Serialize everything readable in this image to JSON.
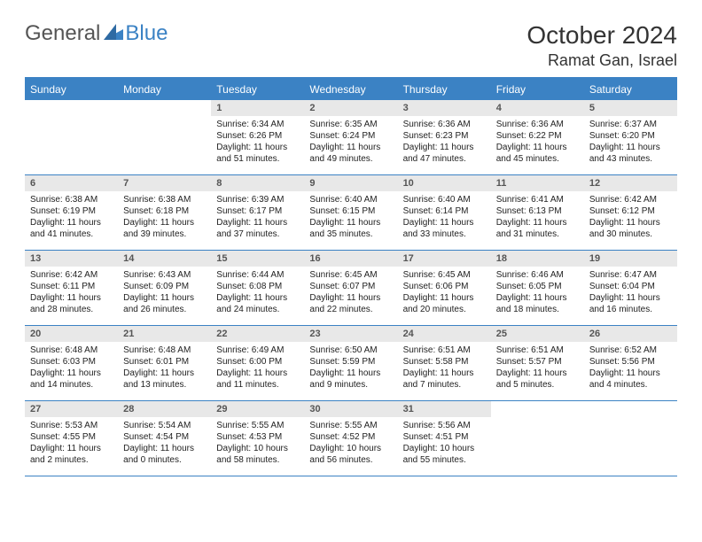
{
  "brand": {
    "part1": "General",
    "part2": "Blue"
  },
  "title": "October 2024",
  "location": "Ramat Gan, Israel",
  "colors": {
    "accent": "#3b82c4",
    "daynum_bg": "#e8e8e8",
    "text": "#333333",
    "background": "#ffffff"
  },
  "fonts": {
    "title_size": 28,
    "location_size": 18,
    "dow_size": 12,
    "daynum_size": 11,
    "body_size": 10
  },
  "days_of_week": [
    "Sunday",
    "Monday",
    "Tuesday",
    "Wednesday",
    "Thursday",
    "Friday",
    "Saturday"
  ],
  "weeks": [
    [
      null,
      null,
      {
        "num": "1",
        "sunrise": "Sunrise: 6:34 AM",
        "sunset": "Sunset: 6:26 PM",
        "daylight": "Daylight: 11 hours and 51 minutes."
      },
      {
        "num": "2",
        "sunrise": "Sunrise: 6:35 AM",
        "sunset": "Sunset: 6:24 PM",
        "daylight": "Daylight: 11 hours and 49 minutes."
      },
      {
        "num": "3",
        "sunrise": "Sunrise: 6:36 AM",
        "sunset": "Sunset: 6:23 PM",
        "daylight": "Daylight: 11 hours and 47 minutes."
      },
      {
        "num": "4",
        "sunrise": "Sunrise: 6:36 AM",
        "sunset": "Sunset: 6:22 PM",
        "daylight": "Daylight: 11 hours and 45 minutes."
      },
      {
        "num": "5",
        "sunrise": "Sunrise: 6:37 AM",
        "sunset": "Sunset: 6:20 PM",
        "daylight": "Daylight: 11 hours and 43 minutes."
      }
    ],
    [
      {
        "num": "6",
        "sunrise": "Sunrise: 6:38 AM",
        "sunset": "Sunset: 6:19 PM",
        "daylight": "Daylight: 11 hours and 41 minutes."
      },
      {
        "num": "7",
        "sunrise": "Sunrise: 6:38 AM",
        "sunset": "Sunset: 6:18 PM",
        "daylight": "Daylight: 11 hours and 39 minutes."
      },
      {
        "num": "8",
        "sunrise": "Sunrise: 6:39 AM",
        "sunset": "Sunset: 6:17 PM",
        "daylight": "Daylight: 11 hours and 37 minutes."
      },
      {
        "num": "9",
        "sunrise": "Sunrise: 6:40 AM",
        "sunset": "Sunset: 6:15 PM",
        "daylight": "Daylight: 11 hours and 35 minutes."
      },
      {
        "num": "10",
        "sunrise": "Sunrise: 6:40 AM",
        "sunset": "Sunset: 6:14 PM",
        "daylight": "Daylight: 11 hours and 33 minutes."
      },
      {
        "num": "11",
        "sunrise": "Sunrise: 6:41 AM",
        "sunset": "Sunset: 6:13 PM",
        "daylight": "Daylight: 11 hours and 31 minutes."
      },
      {
        "num": "12",
        "sunrise": "Sunrise: 6:42 AM",
        "sunset": "Sunset: 6:12 PM",
        "daylight": "Daylight: 11 hours and 30 minutes."
      }
    ],
    [
      {
        "num": "13",
        "sunrise": "Sunrise: 6:42 AM",
        "sunset": "Sunset: 6:11 PM",
        "daylight": "Daylight: 11 hours and 28 minutes."
      },
      {
        "num": "14",
        "sunrise": "Sunrise: 6:43 AM",
        "sunset": "Sunset: 6:09 PM",
        "daylight": "Daylight: 11 hours and 26 minutes."
      },
      {
        "num": "15",
        "sunrise": "Sunrise: 6:44 AM",
        "sunset": "Sunset: 6:08 PM",
        "daylight": "Daylight: 11 hours and 24 minutes."
      },
      {
        "num": "16",
        "sunrise": "Sunrise: 6:45 AM",
        "sunset": "Sunset: 6:07 PM",
        "daylight": "Daylight: 11 hours and 22 minutes."
      },
      {
        "num": "17",
        "sunrise": "Sunrise: 6:45 AM",
        "sunset": "Sunset: 6:06 PM",
        "daylight": "Daylight: 11 hours and 20 minutes."
      },
      {
        "num": "18",
        "sunrise": "Sunrise: 6:46 AM",
        "sunset": "Sunset: 6:05 PM",
        "daylight": "Daylight: 11 hours and 18 minutes."
      },
      {
        "num": "19",
        "sunrise": "Sunrise: 6:47 AM",
        "sunset": "Sunset: 6:04 PM",
        "daylight": "Daylight: 11 hours and 16 minutes."
      }
    ],
    [
      {
        "num": "20",
        "sunrise": "Sunrise: 6:48 AM",
        "sunset": "Sunset: 6:03 PM",
        "daylight": "Daylight: 11 hours and 14 minutes."
      },
      {
        "num": "21",
        "sunrise": "Sunrise: 6:48 AM",
        "sunset": "Sunset: 6:01 PM",
        "daylight": "Daylight: 11 hours and 13 minutes."
      },
      {
        "num": "22",
        "sunrise": "Sunrise: 6:49 AM",
        "sunset": "Sunset: 6:00 PM",
        "daylight": "Daylight: 11 hours and 11 minutes."
      },
      {
        "num": "23",
        "sunrise": "Sunrise: 6:50 AM",
        "sunset": "Sunset: 5:59 PM",
        "daylight": "Daylight: 11 hours and 9 minutes."
      },
      {
        "num": "24",
        "sunrise": "Sunrise: 6:51 AM",
        "sunset": "Sunset: 5:58 PM",
        "daylight": "Daylight: 11 hours and 7 minutes."
      },
      {
        "num": "25",
        "sunrise": "Sunrise: 6:51 AM",
        "sunset": "Sunset: 5:57 PM",
        "daylight": "Daylight: 11 hours and 5 minutes."
      },
      {
        "num": "26",
        "sunrise": "Sunrise: 6:52 AM",
        "sunset": "Sunset: 5:56 PM",
        "daylight": "Daylight: 11 hours and 4 minutes."
      }
    ],
    [
      {
        "num": "27",
        "sunrise": "Sunrise: 5:53 AM",
        "sunset": "Sunset: 4:55 PM",
        "daylight": "Daylight: 11 hours and 2 minutes."
      },
      {
        "num": "28",
        "sunrise": "Sunrise: 5:54 AM",
        "sunset": "Sunset: 4:54 PM",
        "daylight": "Daylight: 11 hours and 0 minutes."
      },
      {
        "num": "29",
        "sunrise": "Sunrise: 5:55 AM",
        "sunset": "Sunset: 4:53 PM",
        "daylight": "Daylight: 10 hours and 58 minutes."
      },
      {
        "num": "30",
        "sunrise": "Sunrise: 5:55 AM",
        "sunset": "Sunset: 4:52 PM",
        "daylight": "Daylight: 10 hours and 56 minutes."
      },
      {
        "num": "31",
        "sunrise": "Sunrise: 5:56 AM",
        "sunset": "Sunset: 4:51 PM",
        "daylight": "Daylight: 10 hours and 55 minutes."
      },
      null,
      null
    ]
  ]
}
